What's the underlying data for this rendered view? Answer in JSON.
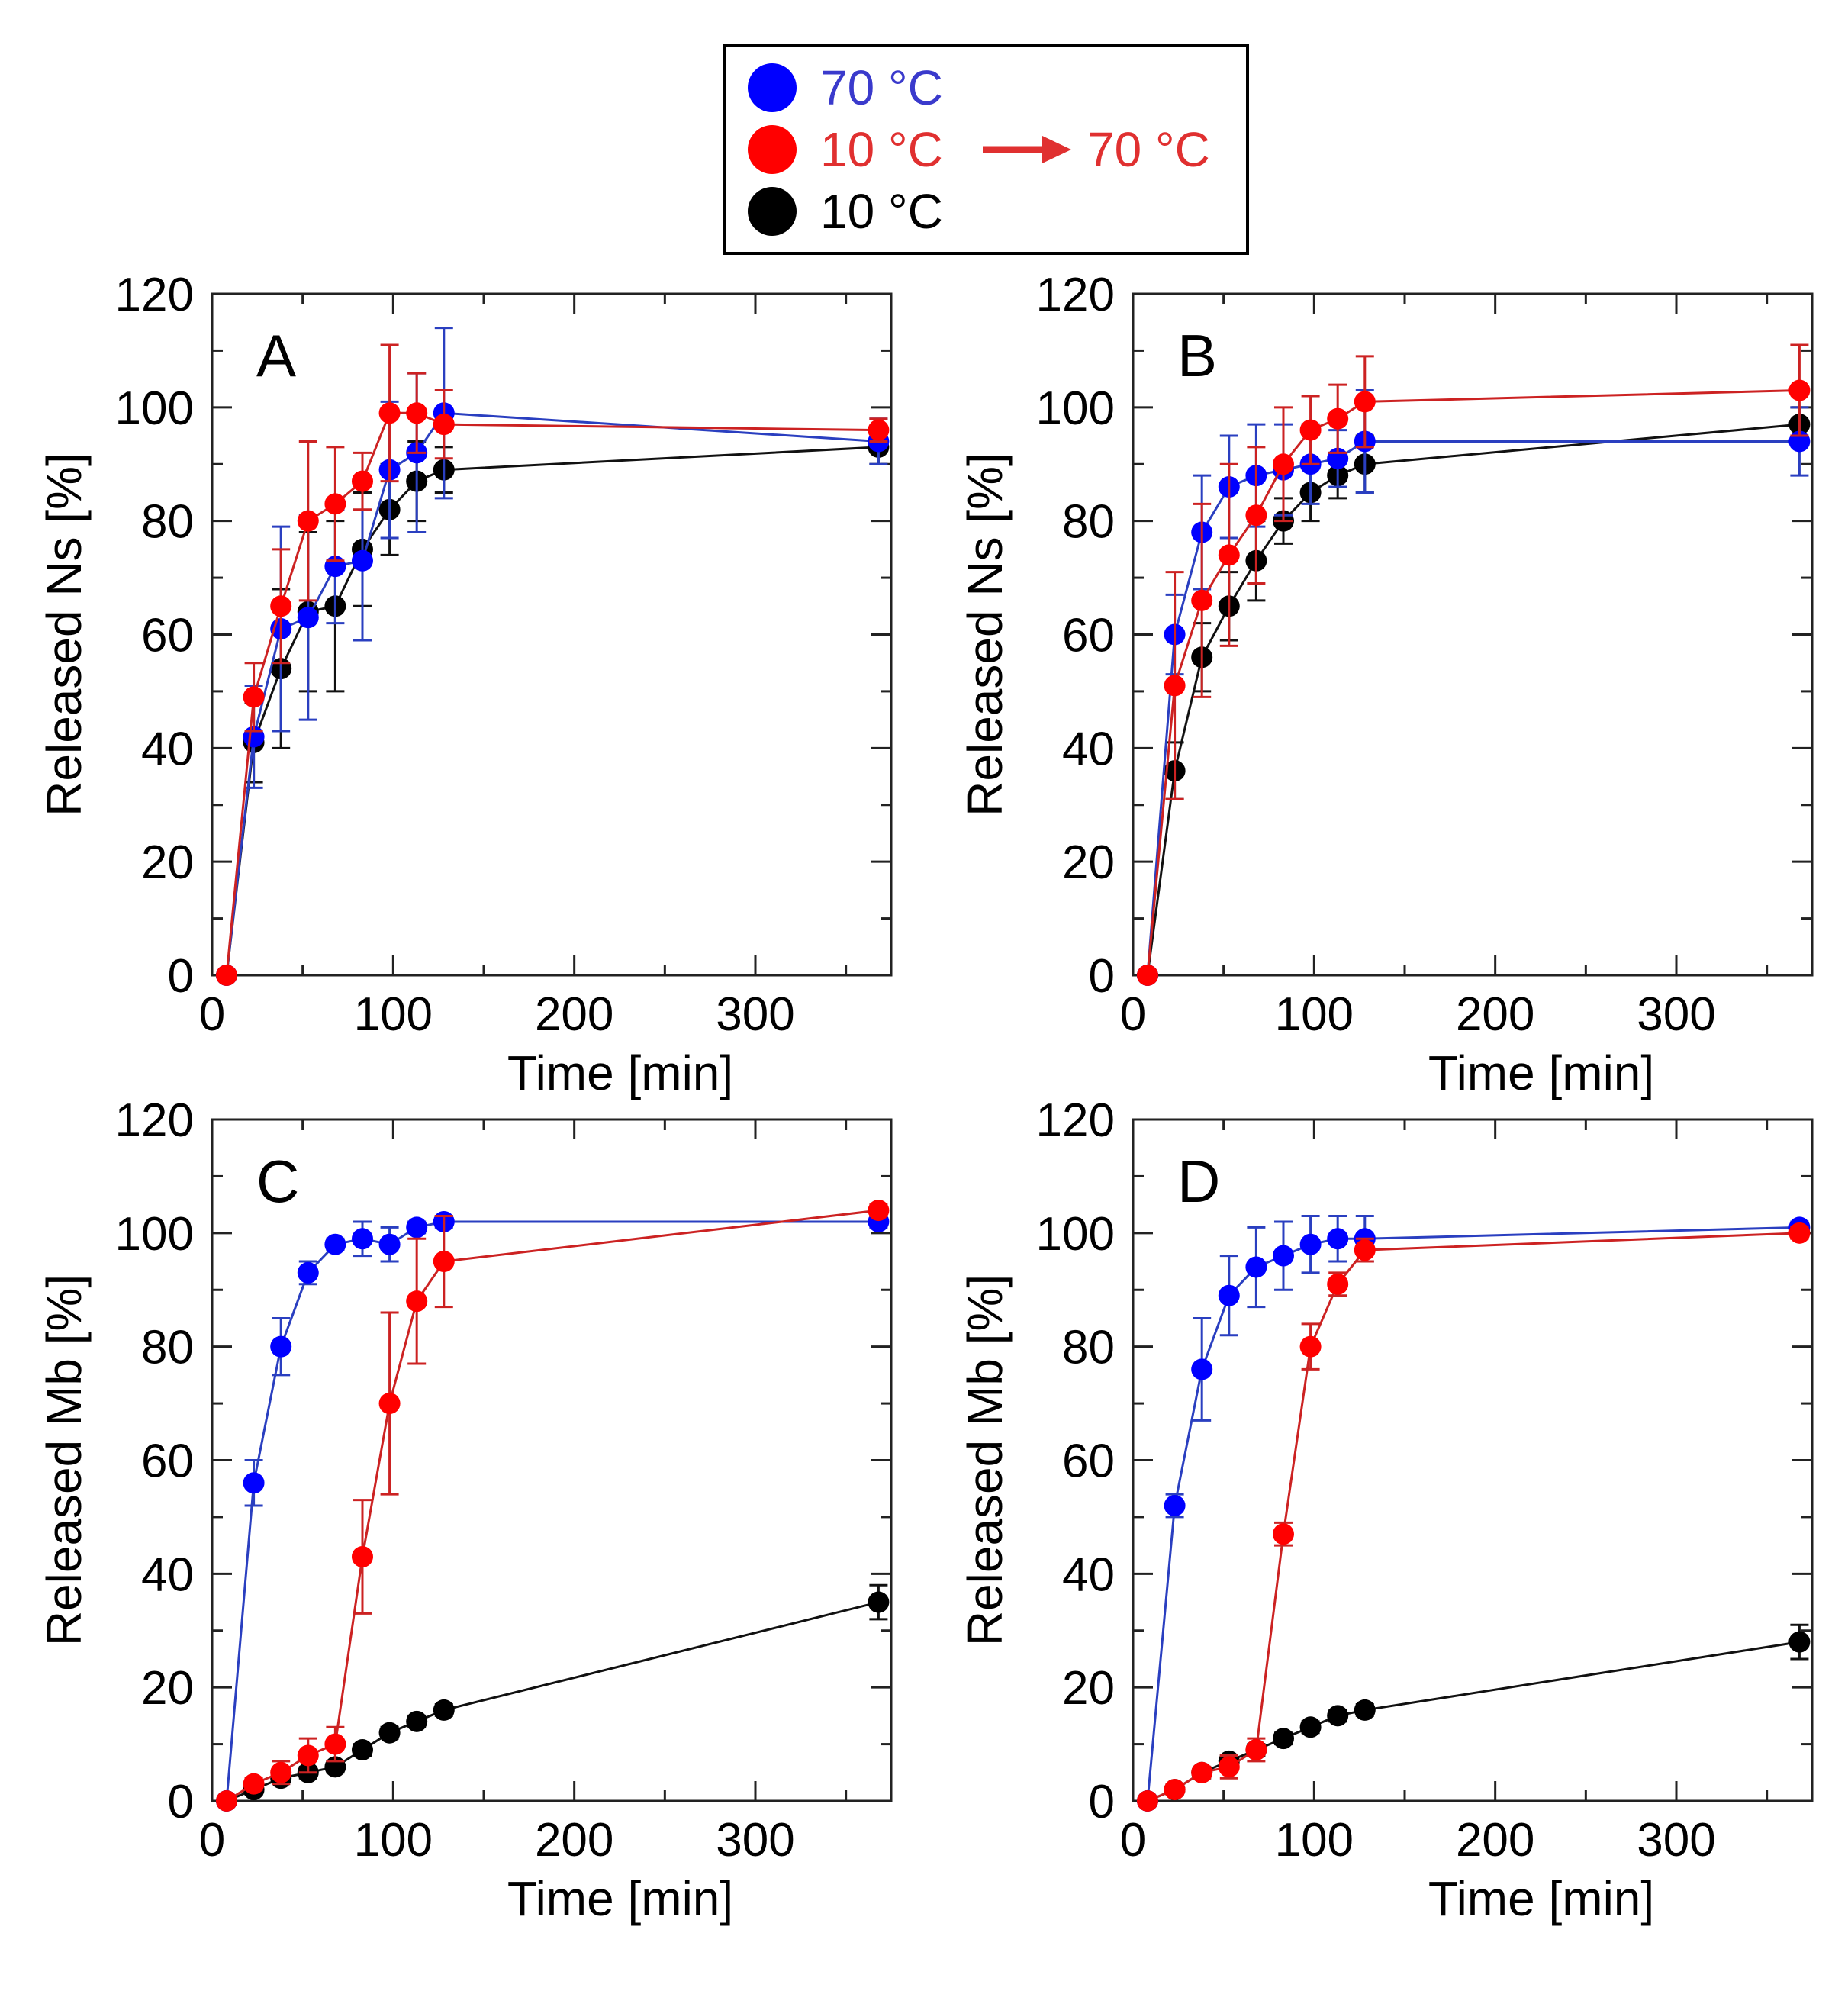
{
  "legend": {
    "entries": [
      {
        "id": "s70",
        "label_parts": [
          "70 ",
          "°C"
        ],
        "color": "#0000ff",
        "text_color": "#3a3acc"
      },
      {
        "id": "s10to70",
        "label_parts": [
          "10 ",
          "°C",
          "70 ",
          "°C"
        ],
        "color": "#ff0000",
        "text_color": "#e03030",
        "arrow": true
      },
      {
        "id": "s10",
        "label_parts": [
          "10 ",
          "°C"
        ],
        "color": "#000000",
        "text_color": "#000000"
      }
    ]
  },
  "colors": {
    "s70": "#0000ff",
    "s10to70": "#ff0000",
    "s10": "#000000",
    "line70": "#2a3fc0",
    "line10to70": "#cc2222",
    "line10": "#111111"
  },
  "chart_data": [
    {
      "panel": "A",
      "type": "line",
      "xlabel": "Time  [min]",
      "ylabel": "Released Ns [%]",
      "xlim": [
        0,
        375
      ],
      "ylim": [
        0,
        120
      ],
      "xticks": [
        0,
        100,
        200,
        300
      ],
      "xtick_labels": [
        "0",
        "100",
        "200",
        "300"
      ],
      "yticks": [
        0,
        20,
        40,
        60,
        80,
        100,
        120
      ],
      "ytick_labels": [
        "0",
        "20",
        "40",
        "60",
        "80",
        "100",
        "120"
      ],
      "series": [
        {
          "id": "s70",
          "name": "70 °C",
          "x": [
            8,
            23,
            38,
            53,
            68,
            83,
            98,
            113,
            128,
            368
          ],
          "y": [
            0,
            42,
            61,
            63,
            72,
            73,
            89,
            92,
            99,
            94
          ],
          "err": [
            0,
            9,
            18,
            18,
            10,
            14,
            12,
            14,
            15,
            4
          ]
        },
        {
          "id": "s10to70",
          "name": "10 °C → 70 °C",
          "x": [
            8,
            23,
            38,
            53,
            68,
            83,
            98,
            113,
            128,
            368
          ],
          "y": [
            0,
            49,
            65,
            80,
            83,
            87,
            99,
            99,
            97,
            96
          ],
          "err": [
            0,
            6,
            10,
            14,
            10,
            5,
            12,
            7,
            6,
            2
          ]
        },
        {
          "id": "s10",
          "name": "10 °C",
          "x": [
            8,
            23,
            38,
            53,
            68,
            83,
            98,
            113,
            128,
            368
          ],
          "y": [
            0,
            41,
            54,
            64,
            65,
            75,
            82,
            87,
            89,
            93
          ],
          "err": [
            0,
            7,
            14,
            14,
            15,
            10,
            8,
            7,
            4,
            3
          ]
        }
      ]
    },
    {
      "panel": "B",
      "type": "line",
      "xlabel": "Time  [min]",
      "ylabel": "Released Ns [%]",
      "xlim": [
        0,
        375
      ],
      "ylim": [
        0,
        120
      ],
      "xticks": [
        0,
        100,
        200,
        300
      ],
      "xtick_labels": [
        "0",
        "100",
        "200",
        "300"
      ],
      "yticks": [
        0,
        20,
        40,
        60,
        80,
        100,
        120
      ],
      "ytick_labels": [
        "0",
        "20",
        "40",
        "60",
        "80",
        "100",
        "120"
      ],
      "series": [
        {
          "id": "s70",
          "name": "70 °C",
          "x": [
            8,
            23,
            38,
            53,
            68,
            83,
            98,
            113,
            128,
            368
          ],
          "y": [
            0,
            60,
            78,
            86,
            88,
            89,
            90,
            91,
            94,
            94
          ],
          "err": [
            0,
            7,
            10,
            9,
            9,
            8,
            7,
            5,
            9,
            6
          ]
        },
        {
          "id": "s10to70",
          "name": "10 °C → 70 °C",
          "x": [
            8,
            23,
            38,
            53,
            68,
            83,
            98,
            113,
            128,
            368
          ],
          "y": [
            0,
            51,
            66,
            74,
            81,
            90,
            96,
            98,
            101,
            103
          ],
          "err": [
            0,
            20,
            17,
            16,
            12,
            10,
            6,
            6,
            8,
            8
          ]
        },
        {
          "id": "s10",
          "name": "10 °C",
          "x": [
            8,
            23,
            38,
            53,
            68,
            83,
            98,
            113,
            128,
            368
          ],
          "y": [
            0,
            36,
            56,
            65,
            73,
            80,
            85,
            88,
            90,
            97
          ],
          "err": [
            0,
            5,
            6,
            6,
            7,
            4,
            5,
            4,
            5,
            3
          ]
        }
      ]
    },
    {
      "panel": "C",
      "type": "line",
      "xlabel": "Time  [min]",
      "ylabel": "Released Mb [%]",
      "xlim": [
        0,
        375
      ],
      "ylim": [
        0,
        120
      ],
      "xticks": [
        0,
        100,
        200,
        300
      ],
      "xtick_labels": [
        "0",
        "100",
        "200",
        "300"
      ],
      "yticks": [
        0,
        20,
        40,
        60,
        80,
        100,
        120
      ],
      "ytick_labels": [
        "0",
        "20",
        "40",
        "60",
        "80",
        "100",
        "120"
      ],
      "series": [
        {
          "id": "s70",
          "name": "70 °C",
          "x": [
            8,
            23,
            38,
            53,
            68,
            83,
            98,
            113,
            128,
            368
          ],
          "y": [
            0,
            56,
            80,
            93,
            98,
            99,
            98,
            101,
            102,
            102
          ],
          "err": [
            0,
            4,
            5,
            2,
            1,
            3,
            3,
            1,
            1,
            1
          ]
        },
        {
          "id": "s10to70",
          "name": "10 °C → 70 °C",
          "x": [
            8,
            23,
            38,
            53,
            68,
            83,
            98,
            113,
            128,
            368
          ],
          "y": [
            0,
            3,
            5,
            8,
            10,
            43,
            70,
            88,
            95,
            104
          ],
          "err": [
            0,
            1,
            2,
            3,
            3,
            10,
            16,
            11,
            8,
            1
          ]
        },
        {
          "id": "s10",
          "name": "10 °C",
          "x": [
            8,
            23,
            38,
            53,
            68,
            83,
            98,
            113,
            128,
            368
          ],
          "y": [
            0,
            2,
            4,
            5,
            6,
            9,
            12,
            14,
            16,
            35
          ],
          "err": [
            0,
            1,
            1,
            1,
            1,
            1,
            1,
            1,
            1,
            3
          ]
        }
      ]
    },
    {
      "panel": "D",
      "type": "line",
      "xlabel": "Time  [min]",
      "ylabel": "Released Mb [%]",
      "xlim": [
        0,
        375
      ],
      "ylim": [
        0,
        120
      ],
      "xticks": [
        0,
        100,
        200,
        300
      ],
      "xtick_labels": [
        "0",
        "100",
        "200",
        "300"
      ],
      "yticks": [
        0,
        20,
        40,
        60,
        80,
        100,
        120
      ],
      "ytick_labels": [
        "0",
        "20",
        "40",
        "60",
        "80",
        "100",
        "120"
      ],
      "series": [
        {
          "id": "s70",
          "name": "70 °C",
          "x": [
            8,
            23,
            38,
            53,
            68,
            83,
            98,
            113,
            128,
            368
          ],
          "y": [
            0,
            52,
            76,
            89,
            94,
            96,
            98,
            99,
            99,
            101
          ],
          "err": [
            0,
            2,
            9,
            7,
            7,
            6,
            5,
            4,
            4,
            1
          ]
        },
        {
          "id": "s10to70",
          "name": "10 °C → 70 °C",
          "x": [
            8,
            23,
            38,
            53,
            68,
            83,
            98,
            113,
            128,
            368
          ],
          "y": [
            0,
            2,
            5,
            6,
            9,
            47,
            80,
            91,
            97,
            100
          ],
          "err": [
            0,
            1,
            1,
            2,
            2,
            2,
            4,
            2,
            2,
            1
          ]
        },
        {
          "id": "s10",
          "name": "10 °C",
          "x": [
            8,
            23,
            38,
            53,
            68,
            83,
            98,
            113,
            128,
            368
          ],
          "y": [
            0,
            2,
            5,
            7,
            9,
            11,
            13,
            15,
            16,
            28
          ],
          "err": [
            0,
            1,
            1,
            1,
            1,
            1,
            1,
            1,
            1,
            3
          ]
        }
      ]
    }
  ]
}
